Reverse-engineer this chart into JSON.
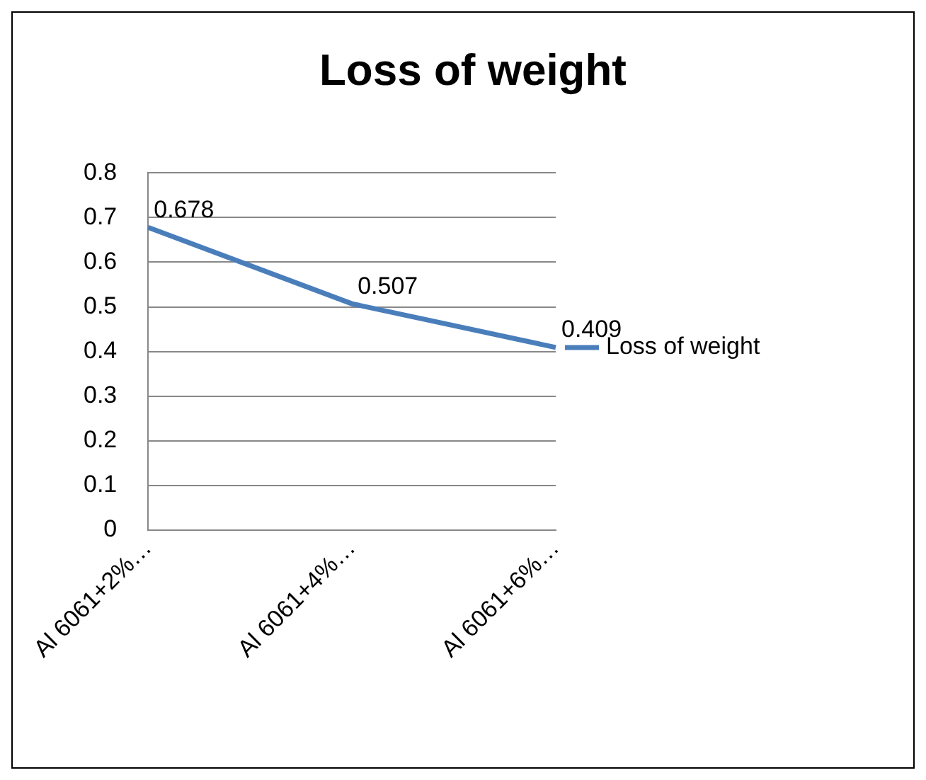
{
  "chart_data": {
    "type": "line",
    "title": "Loss of weight",
    "categories": [
      "Al 6061+2%…",
      "Al 6061+4%…",
      "Al 6061+6%…"
    ],
    "series": [
      {
        "name": "Loss of weight",
        "color": "#4a7ebb",
        "values": [
          0.678,
          0.507,
          0.409
        ]
      }
    ],
    "ylim": [
      0,
      0.8
    ],
    "yticks": [
      0,
      0.1,
      0.2,
      0.3,
      0.4,
      0.5,
      0.6,
      0.7,
      0.8
    ],
    "grid": "y",
    "legend": "right",
    "marker": "none",
    "line_style": "solid",
    "data_labels": true
  }
}
